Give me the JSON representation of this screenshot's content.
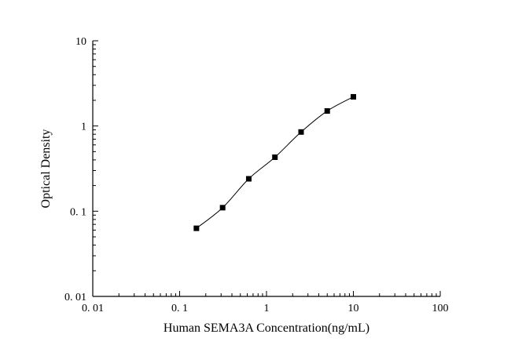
{
  "chart_data": {
    "type": "scatter",
    "title": "",
    "xlabel": "Human SEMA3A Concentration(ng/mL)",
    "ylabel": "Optical Density",
    "x_scale": "log",
    "y_scale": "log",
    "xlim": [
      0.01,
      100
    ],
    "ylim": [
      0.01,
      10
    ],
    "x_tick_values": [
      0.01,
      0.1,
      1,
      10,
      100
    ],
    "x_tick_labels": [
      "0. 01",
      "0. 1",
      "1",
      "10",
      "100"
    ],
    "y_tick_values": [
      0.01,
      0.1,
      1,
      10
    ],
    "y_tick_labels": [
      "0. 01",
      "0. 1",
      "1",
      "10"
    ],
    "grid": "off",
    "legend": "none",
    "marker": "filled-square",
    "marker_color": "#000000",
    "line_color": "#000000",
    "points": [
      {
        "x": 0.156,
        "y": 0.063
      },
      {
        "x": 0.3125,
        "y": 0.11
      },
      {
        "x": 0.625,
        "y": 0.24
      },
      {
        "x": 1.25,
        "y": 0.43
      },
      {
        "x": 2.5,
        "y": 0.85
      },
      {
        "x": 5,
        "y": 1.5
      },
      {
        "x": 10,
        "y": 2.2
      }
    ]
  }
}
